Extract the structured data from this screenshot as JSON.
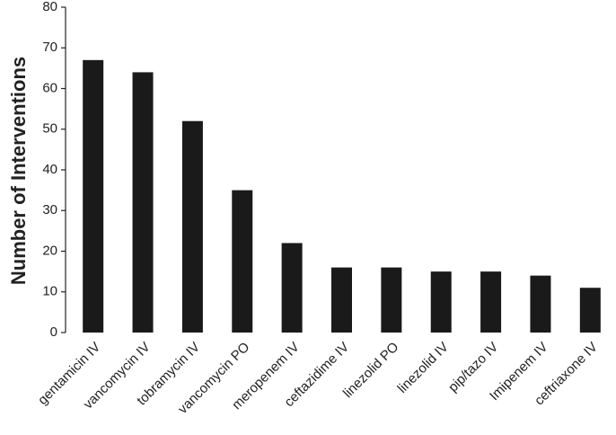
{
  "chart_data": {
    "type": "bar",
    "y_label": "Number of Interventions",
    "categories": [
      "gentamicin IV",
      "vancomycin IV",
      "tobramycin IV",
      "vancomycin PO",
      "meropenem IV",
      "ceftazidime IV",
      "linezolid PO",
      "linezolid IV",
      "pip/tazo IV",
      "Imipenem IV",
      "ceftriaxone IV"
    ],
    "values": [
      67,
      64,
      52,
      35,
      22,
      16,
      16,
      15,
      15,
      14,
      11
    ],
    "color": "#1a1a1a",
    "ylim": [
      0,
      80
    ],
    "yticks": [
      0,
      10,
      20,
      30,
      40,
      50,
      60,
      70,
      80
    ],
    "grid": false
  }
}
